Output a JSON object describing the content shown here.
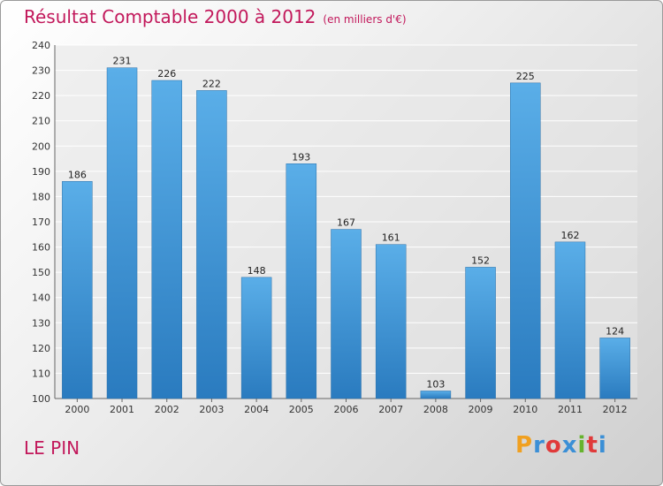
{
  "chart_data": {
    "type": "bar",
    "title": "Résultat Comptable 2000 à 2012",
    "unit_note": "(en milliers d'€)",
    "categories": [
      "2000",
      "2001",
      "2002",
      "2003",
      "2004",
      "2005",
      "2006",
      "2007",
      "2008",
      "2009",
      "2010",
      "2011",
      "2012"
    ],
    "values": [
      186,
      231,
      226,
      222,
      148,
      193,
      167,
      161,
      103,
      152,
      225,
      162,
      124
    ],
    "ylim": [
      100,
      240
    ],
    "yticks": [
      100,
      110,
      120,
      130,
      140,
      150,
      160,
      170,
      180,
      190,
      200,
      210,
      220,
      230,
      240
    ],
    "xlabel": "",
    "ylabel": "",
    "grid": true,
    "bar_color_top": "#5aaee8",
    "bar_color_bottom": "#2a7bbf"
  },
  "footer": {
    "place_name": "LE PIN",
    "logo_letters": [
      "P",
      "r",
      "o",
      "x",
      "i",
      "t",
      "i"
    ],
    "logo_colors": [
      "#f0a020",
      "#3b8fd6",
      "#e03a3a",
      "#3b8fd6",
      "#66b32e",
      "#e03a3a",
      "#3b8fd6"
    ]
  }
}
